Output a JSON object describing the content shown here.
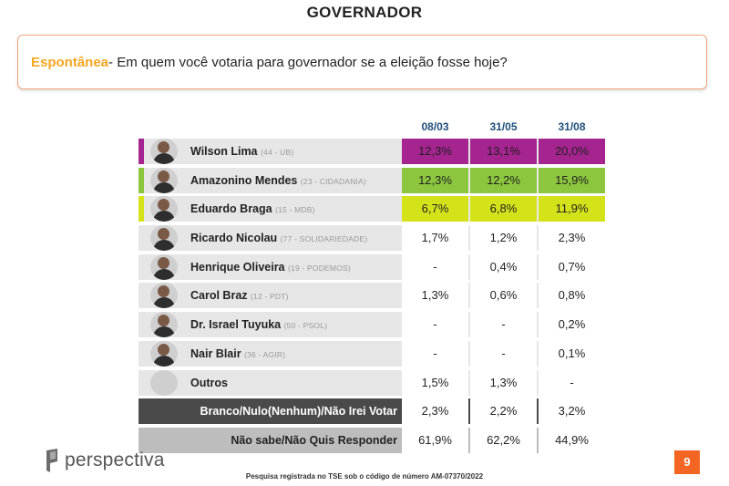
{
  "title": "GOVERNADOR",
  "question": {
    "tag": "Espontânea",
    "text": " - Em quem você votaria para governador se a eleição fosse hoje?"
  },
  "colors": {
    "wilson": "#a5248f",
    "amazonino": "#8cc63f",
    "braga": "#d4e21a",
    "accent": "#f26522"
  },
  "chart_data": {
    "type": "table",
    "columns": [
      "08/03",
      "31/05",
      "31/08"
    ],
    "rows": [
      {
        "name": "Wilson Lima",
        "party": "(44 - UB)",
        "values": [
          "12,3%",
          "13,1%",
          "20,0%"
        ],
        "color": "#a5248f"
      },
      {
        "name": "Amazonino Mendes",
        "party": "(23 - CIDADANIA)",
        "values": [
          "12,3%",
          "12,2%",
          "15,9%"
        ],
        "color": "#8cc63f"
      },
      {
        "name": "Eduardo Braga",
        "party": "(15 - MDB)",
        "values": [
          "6,7%",
          "6,8%",
          "11,9%"
        ],
        "color": "#d4e21a"
      },
      {
        "name": "Ricardo Nicolau",
        "party": "(77 - SOLIDARIEDADE)",
        "values": [
          "1,7%",
          "1,2%",
          "2,3%"
        ]
      },
      {
        "name": "Henrique Oliveira",
        "party": "(19 - PODEMOS)",
        "values": [
          "-",
          "0,4%",
          "0,7%"
        ]
      },
      {
        "name": "Carol Braz",
        "party": "(12 - PDT)",
        "values": [
          "1,3%",
          "0,6%",
          "0,8%"
        ]
      },
      {
        "name": "Dr. Israel Tuyuka",
        "party": "(50 - PSOL)",
        "values": [
          "-",
          "-",
          "0,2%"
        ]
      },
      {
        "name": "Nair Blair",
        "party": "(36 - AGIR)",
        "values": [
          "-",
          "-",
          "0,1%"
        ]
      },
      {
        "name": "Outros",
        "party": "",
        "values": [
          "1,5%",
          "1,3%",
          "-"
        ]
      }
    ],
    "totals": [
      {
        "label": "Branco/Nulo(Nenhum)/Não Irei Votar",
        "values": [
          "2,3%",
          "2,2%",
          "3,2%"
        ]
      },
      {
        "label": "Não sabe/Não Quis Responder",
        "values": [
          "61,9%",
          "62,2%",
          "44,9%"
        ]
      }
    ]
  },
  "logo": "perspectiva",
  "footer": "Pesquisa registrada no TSE sob o código de número AM-07370/2022",
  "page_number": "9"
}
